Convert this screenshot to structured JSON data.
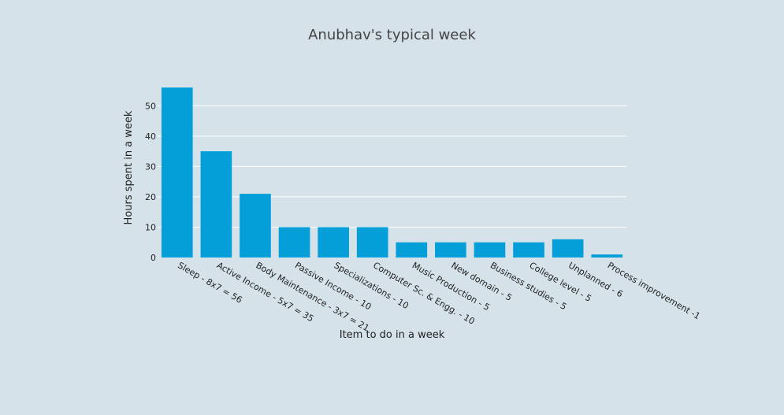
{
  "chart_data": {
    "type": "bar",
    "title": "Anubhav's typical week",
    "xlabel": "Item to do in a week",
    "ylabel": "Hours spent in a week",
    "categories": [
      "Sleep - 8x7 = 56",
      "Active Income - 5x7 = 35",
      "Body Maintenance - 3x7 = 21",
      "Passive Income - 10",
      "Specializations - 10",
      "Computer Sc. & Engg. - 10",
      "Music Production - 5",
      "New domain - 5",
      "Business studies - 5",
      "College level - 5",
      "Unplanned - 6",
      "Process improvement -1"
    ],
    "values": [
      56,
      35,
      21,
      10,
      10,
      10,
      5,
      5,
      5,
      5,
      6,
      1
    ],
    "yticks": [
      0,
      10,
      20,
      30,
      40,
      50
    ],
    "ylim": [
      0,
      58.9
    ],
    "grid": true,
    "colors": {
      "background": "#d5e2ea",
      "bar": "#049fd9",
      "grid": "#ffffff",
      "text": "#222222",
      "title": "#444444"
    }
  }
}
